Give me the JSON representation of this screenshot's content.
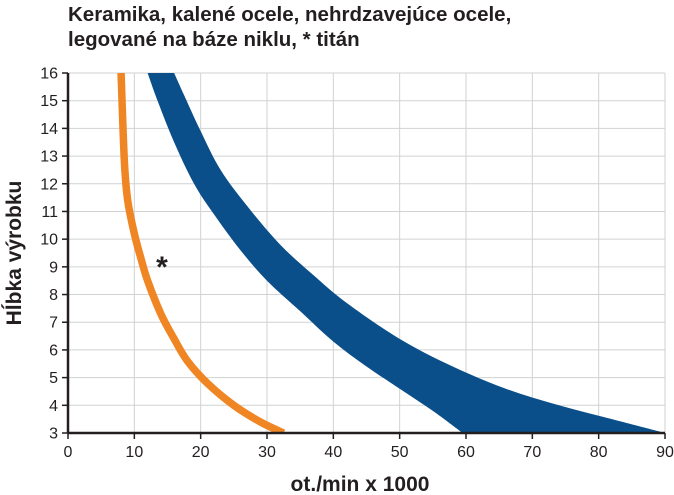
{
  "chart_data": {
    "type": "area",
    "title_lines": [
      "Keramika, kalené ocele, nehrdzavejúce ocele,",
      "legované na báze niklu, * titán"
    ],
    "xlabel": "ot./min x 1000",
    "ylabel": "Hĺbka výrobku",
    "xlim": [
      0,
      90
    ],
    "ylim": [
      3,
      16
    ],
    "x_ticks": [
      0,
      10,
      20,
      30,
      40,
      50,
      60,
      70,
      80,
      90
    ],
    "y_ticks": [
      3,
      4,
      5,
      6,
      7,
      8,
      9,
      10,
      11,
      12,
      13,
      14,
      15,
      16
    ],
    "grid": true,
    "annotation": "*",
    "series": [
      {
        "kind": "band",
        "color": "#0b4f8a",
        "lower": {
          "x": [
            12.0,
            13.5,
            16,
            19,
            22,
            26,
            30,
            35,
            40,
            45,
            50,
            55,
            59.5
          ],
          "y": [
            16,
            15,
            13.5,
            12.0,
            10.9,
            9.6,
            8.5,
            7.4,
            6.3,
            5.4,
            4.6,
            3.8,
            3
          ]
        },
        "upper": {
          "x": [
            16.0,
            17.5,
            20,
            23,
            27,
            32,
            37,
            42,
            50,
            58,
            66,
            74,
            82,
            90
          ],
          "y": [
            16,
            15.2,
            13.9,
            12.5,
            11.2,
            9.8,
            8.7,
            7.7,
            6.4,
            5.4,
            4.6,
            4.0,
            3.5,
            3
          ]
        }
      },
      {
        "kind": "line",
        "color": "#f08523",
        "x": [
          8.0,
          8.5,
          9,
          10,
          11,
          12,
          14,
          16,
          18,
          21,
          25,
          29,
          32.5
        ],
        "y": [
          16,
          12.8,
          11.4,
          10.2,
          9.3,
          8.5,
          7.3,
          6.4,
          5.6,
          4.8,
          4.0,
          3.4,
          3
        ]
      }
    ]
  }
}
